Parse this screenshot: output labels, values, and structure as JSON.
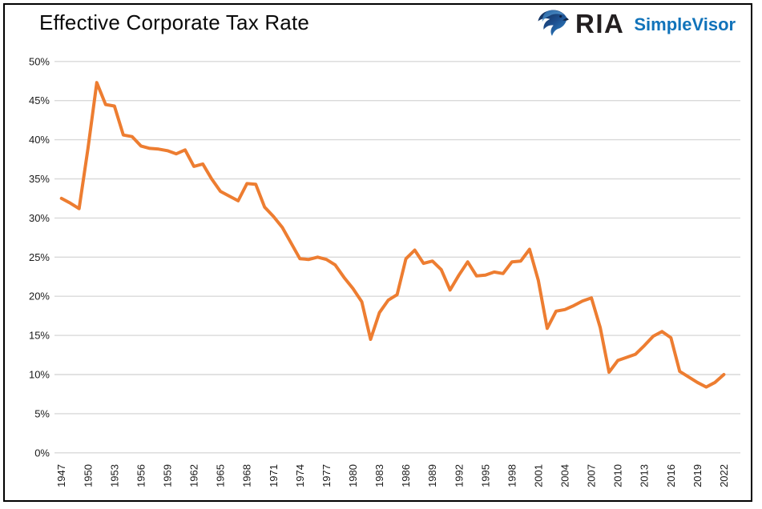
{
  "header": {
    "title": "Effective Corporate Tax Rate",
    "logo": {
      "brand": "RIA",
      "product": "SimpleVisor",
      "brand_color": "#231f20",
      "product_color": "#1173ba",
      "icon": "eagle-icon"
    }
  },
  "chart_data": {
    "type": "line",
    "title": "Effective Corporate Tax Rate",
    "series_name": "Effective Corporate Tax Rate (%)",
    "year_start": 1947,
    "year_end": 2022,
    "values": [
      32.5,
      31.9,
      31.2,
      38.9,
      47.3,
      44.5,
      44.3,
      40.6,
      40.4,
      39.2,
      38.9,
      38.8,
      38.6,
      38.2,
      38.7,
      36.6,
      36.9,
      35.0,
      33.4,
      32.8,
      32.2,
      34.4,
      34.3,
      31.4,
      30.2,
      28.8,
      26.8,
      24.8,
      24.7,
      25.0,
      24.7,
      24.0,
      22.4,
      21.0,
      19.3,
      14.5,
      17.9,
      19.5,
      20.2,
      24.8,
      25.9,
      24.2,
      24.5,
      23.4,
      20.8,
      22.7,
      24.4,
      22.6,
      22.7,
      23.1,
      22.9,
      24.4,
      24.5,
      26.0,
      22.0,
      15.9,
      18.1,
      18.3,
      18.8,
      19.4,
      19.8,
      16.0,
      10.3,
      11.8,
      12.2,
      12.6,
      13.7,
      14.9,
      15.5,
      14.7,
      10.4,
      9.7,
      9.0,
      8.4,
      9.0,
      10.0
    ],
    "ylim": [
      0,
      50
    ],
    "y_tick_labels": [
      "0%",
      "5%",
      "10%",
      "15%",
      "20%",
      "25%",
      "30%",
      "35%",
      "40%",
      "45%",
      "50%"
    ],
    "x_tick_labels": [
      "1947",
      "1950",
      "1953",
      "1956",
      "1959",
      "1962",
      "1965",
      "1968",
      "1971",
      "1974",
      "1977",
      "1980",
      "1983",
      "1986",
      "1989",
      "1992",
      "1995",
      "1998",
      "2001",
      "2004",
      "2007",
      "2010",
      "2013",
      "2016",
      "2019",
      "2022"
    ],
    "x_tick_rotation": -90,
    "grid": "horizontal",
    "gridline_color": "#d9d9d9",
    "line_color": "#ed7d31",
    "legend": "none"
  }
}
